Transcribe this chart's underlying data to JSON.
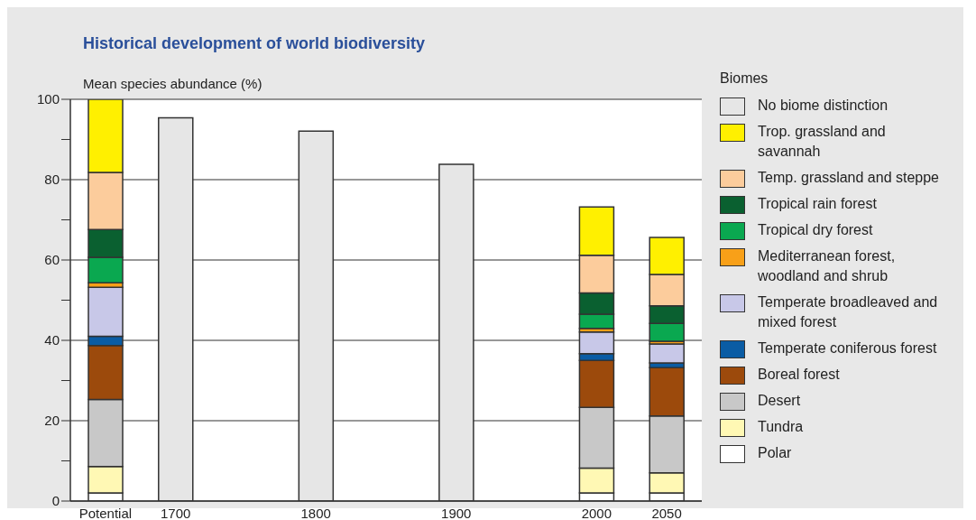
{
  "chart_data": {
    "type": "bar",
    "title": "Historical development of world biodiversity",
    "ylabel": "Mean species abundance (%)",
    "legend_title": "Biomes",
    "categories": [
      "Potential",
      "1700",
      null,
      "1800",
      null,
      "1900",
      null,
      "2000",
      "2050"
    ],
    "stacked": true,
    "ylim": [
      0,
      100
    ],
    "yticks": [
      0,
      {
        "value": 10,
        "label": null
      },
      20,
      {
        "value": 30,
        "label": null
      },
      40,
      {
        "value": 50,
        "label": null
      },
      60,
      {
        "value": 70,
        "label": null
      },
      80,
      {
        "value": 90,
        "label": null
      },
      100
    ],
    "grid": "y",
    "legend": "right",
    "series": [
      {
        "name": "Polar",
        "color": "#ffffff",
        "values": [
          2,
          null,
          null,
          null,
          null,
          null,
          null,
          2,
          2
        ]
      },
      {
        "name": "Tundra",
        "color": "#fff8b4",
        "values": [
          6.6,
          null,
          null,
          null,
          null,
          null,
          null,
          6.2,
          5
        ]
      },
      {
        "name": "Desert",
        "color": "#c8c8c8",
        "values": [
          16.7,
          null,
          null,
          null,
          null,
          null,
          null,
          15.1,
          14.2
        ]
      },
      {
        "name": "Boreal forest",
        "color": "#9c4a0c",
        "values": [
          13.4,
          null,
          null,
          null,
          null,
          null,
          null,
          11.7,
          12
        ]
      },
      {
        "name": "Temperate coniferous forest",
        "color": "#0a5ca4",
        "values": [
          2.3,
          null,
          null,
          null,
          null,
          null,
          null,
          1.7,
          1.2
        ]
      },
      {
        "name": "Temperate broadleaved and mixed forest",
        "color": "#c8c8e8",
        "values": [
          12.2,
          null,
          null,
          null,
          null,
          null,
          null,
          5.4,
          4.7
        ]
      },
      {
        "name": "Mediterranean forest, woodland and shrub",
        "color": "#f8a018",
        "values": [
          1.1,
          null,
          null,
          null,
          null,
          null,
          null,
          0.9,
          0.7
        ]
      },
      {
        "name": "Tropical dry forest",
        "color": "#0aa850",
        "values": [
          6.4,
          null,
          null,
          null,
          null,
          null,
          null,
          3.5,
          4.4
        ]
      },
      {
        "name": "Tropical rain forest",
        "color": "#0a6030",
        "values": [
          6.9,
          null,
          null,
          null,
          null,
          null,
          null,
          5.3,
          4.4
        ]
      },
      {
        "name": "Temp. grassland and steppe",
        "color": "#fccc9c",
        "values": [
          14.2,
          null,
          null,
          null,
          null,
          null,
          null,
          9.4,
          7.8
        ]
      },
      {
        "name": "Trop. grassland and savannah",
        "color": "#fff000",
        "values": [
          18.2,
          null,
          null,
          null,
          null,
          null,
          null,
          12,
          9.2
        ]
      },
      {
        "name": "No biome distinction",
        "color": "#e6e6e6",
        "values": [
          null,
          95.4,
          null,
          92.1,
          null,
          83.8,
          null,
          null,
          null
        ]
      }
    ]
  }
}
